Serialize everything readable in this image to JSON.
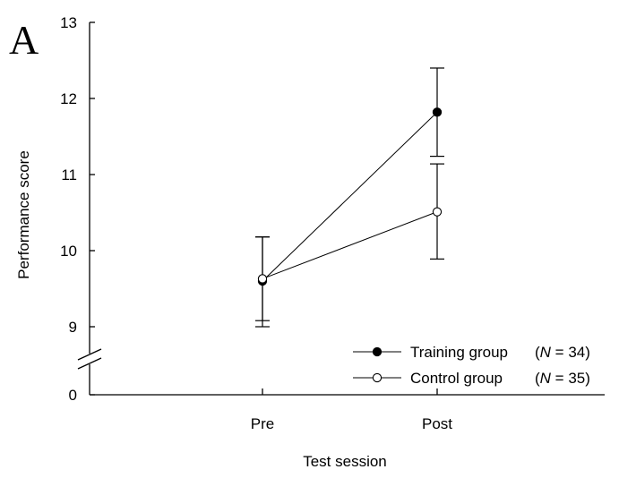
{
  "panel_label": "A",
  "chart_data": {
    "type": "line",
    "title": "",
    "xlabel": "Test session",
    "ylabel": "Performance score",
    "categories": [
      "Pre",
      "Post"
    ],
    "y_ticks": [
      9,
      10,
      11,
      12,
      13
    ],
    "y_break_tick": 0,
    "ylim": [
      8.7,
      13
    ],
    "axis_break": true,
    "grid": false,
    "legend_position": "bottom-right",
    "series": [
      {
        "legend_label": "Training group",
        "n_label": "(N = 34)",
        "n_prefix": "(",
        "n_symbol": "N",
        "n_suffix": " = 34)",
        "marker": "filled-circle",
        "values": [
          9.6,
          11.82
        ],
        "err_upper": [
          10.18,
          12.4
        ],
        "err_lower": [
          9.0,
          11.24
        ]
      },
      {
        "legend_label": "Control group",
        "n_label": "(N = 35)",
        "n_prefix": "(",
        "n_symbol": "N",
        "n_suffix": " = 35)",
        "marker": "open-circle",
        "values": [
          9.63,
          10.51
        ],
        "err_upper": [
          10.18,
          11.14
        ],
        "err_lower": [
          9.08,
          9.89
        ]
      }
    ]
  }
}
